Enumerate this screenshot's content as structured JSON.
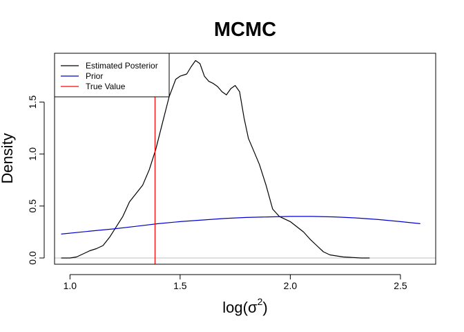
{
  "chart_data": {
    "type": "line",
    "title": "MCMC",
    "xlabel_prefix": "log(",
    "xlabel_symbol": "σ",
    "xlabel_superscript": "2",
    "xlabel_suffix": ")",
    "ylabel": "Density",
    "xlim": [
      0.93,
      2.66
    ],
    "ylim": [
      -0.06,
      1.97
    ],
    "x_ticks": [
      1.0,
      1.5,
      2.0,
      2.5
    ],
    "x_tick_labels": [
      "1.0",
      "1.5",
      "2.0",
      "2.5"
    ],
    "y_ticks": [
      0.0,
      0.5,
      1.0,
      1.5
    ],
    "y_tick_labels": [
      "0.0",
      "0.5",
      "1.0",
      "1.5"
    ],
    "grid": false,
    "legend_position": "top-left",
    "baseline_y": 0,
    "baseline_color": "#bebebe",
    "series": [
      {
        "name": "Estimated Posterior",
        "color": "#000000",
        "x": [
          0.96,
          1.0,
          1.03,
          1.06,
          1.09,
          1.12,
          1.15,
          1.18,
          1.21,
          1.24,
          1.27,
          1.3,
          1.33,
          1.36,
          1.39,
          1.42,
          1.45,
          1.48,
          1.5,
          1.53,
          1.55,
          1.57,
          1.59,
          1.61,
          1.63,
          1.65,
          1.67,
          1.69,
          1.71,
          1.73,
          1.75,
          1.77,
          1.79,
          1.81,
          1.83,
          1.86,
          1.89,
          1.92,
          1.95,
          1.97,
          2.0,
          2.03,
          2.06,
          2.09,
          2.12,
          2.15,
          2.18,
          2.21,
          2.24,
          2.28,
          2.32,
          2.36
        ],
        "y": [
          0.0,
          0.0,
          0.01,
          0.04,
          0.07,
          0.09,
          0.12,
          0.2,
          0.3,
          0.4,
          0.54,
          0.62,
          0.7,
          0.85,
          1.05,
          1.3,
          1.55,
          1.72,
          1.75,
          1.77,
          1.84,
          1.9,
          1.87,
          1.75,
          1.7,
          1.68,
          1.65,
          1.6,
          1.57,
          1.63,
          1.66,
          1.6,
          1.35,
          1.15,
          1.05,
          0.9,
          0.7,
          0.47,
          0.4,
          0.38,
          0.35,
          0.3,
          0.25,
          0.18,
          0.12,
          0.06,
          0.03,
          0.02,
          0.01,
          0.005,
          0.0,
          0.0
        ]
      },
      {
        "name": "Prior",
        "color": "#0000cd",
        "x": [
          0.96,
          1.1,
          1.2,
          1.3,
          1.4,
          1.5,
          1.6,
          1.7,
          1.8,
          1.9,
          2.0,
          2.1,
          2.2,
          2.3,
          2.4,
          2.5,
          2.59
        ],
        "y": [
          0.23,
          0.26,
          0.28,
          0.305,
          0.33,
          0.35,
          0.365,
          0.38,
          0.39,
          0.395,
          0.4,
          0.4,
          0.395,
          0.385,
          0.37,
          0.35,
          0.33
        ]
      }
    ],
    "vlines": [
      {
        "name": "True Value",
        "x": 1.386,
        "color": "#ff0000"
      }
    ]
  }
}
